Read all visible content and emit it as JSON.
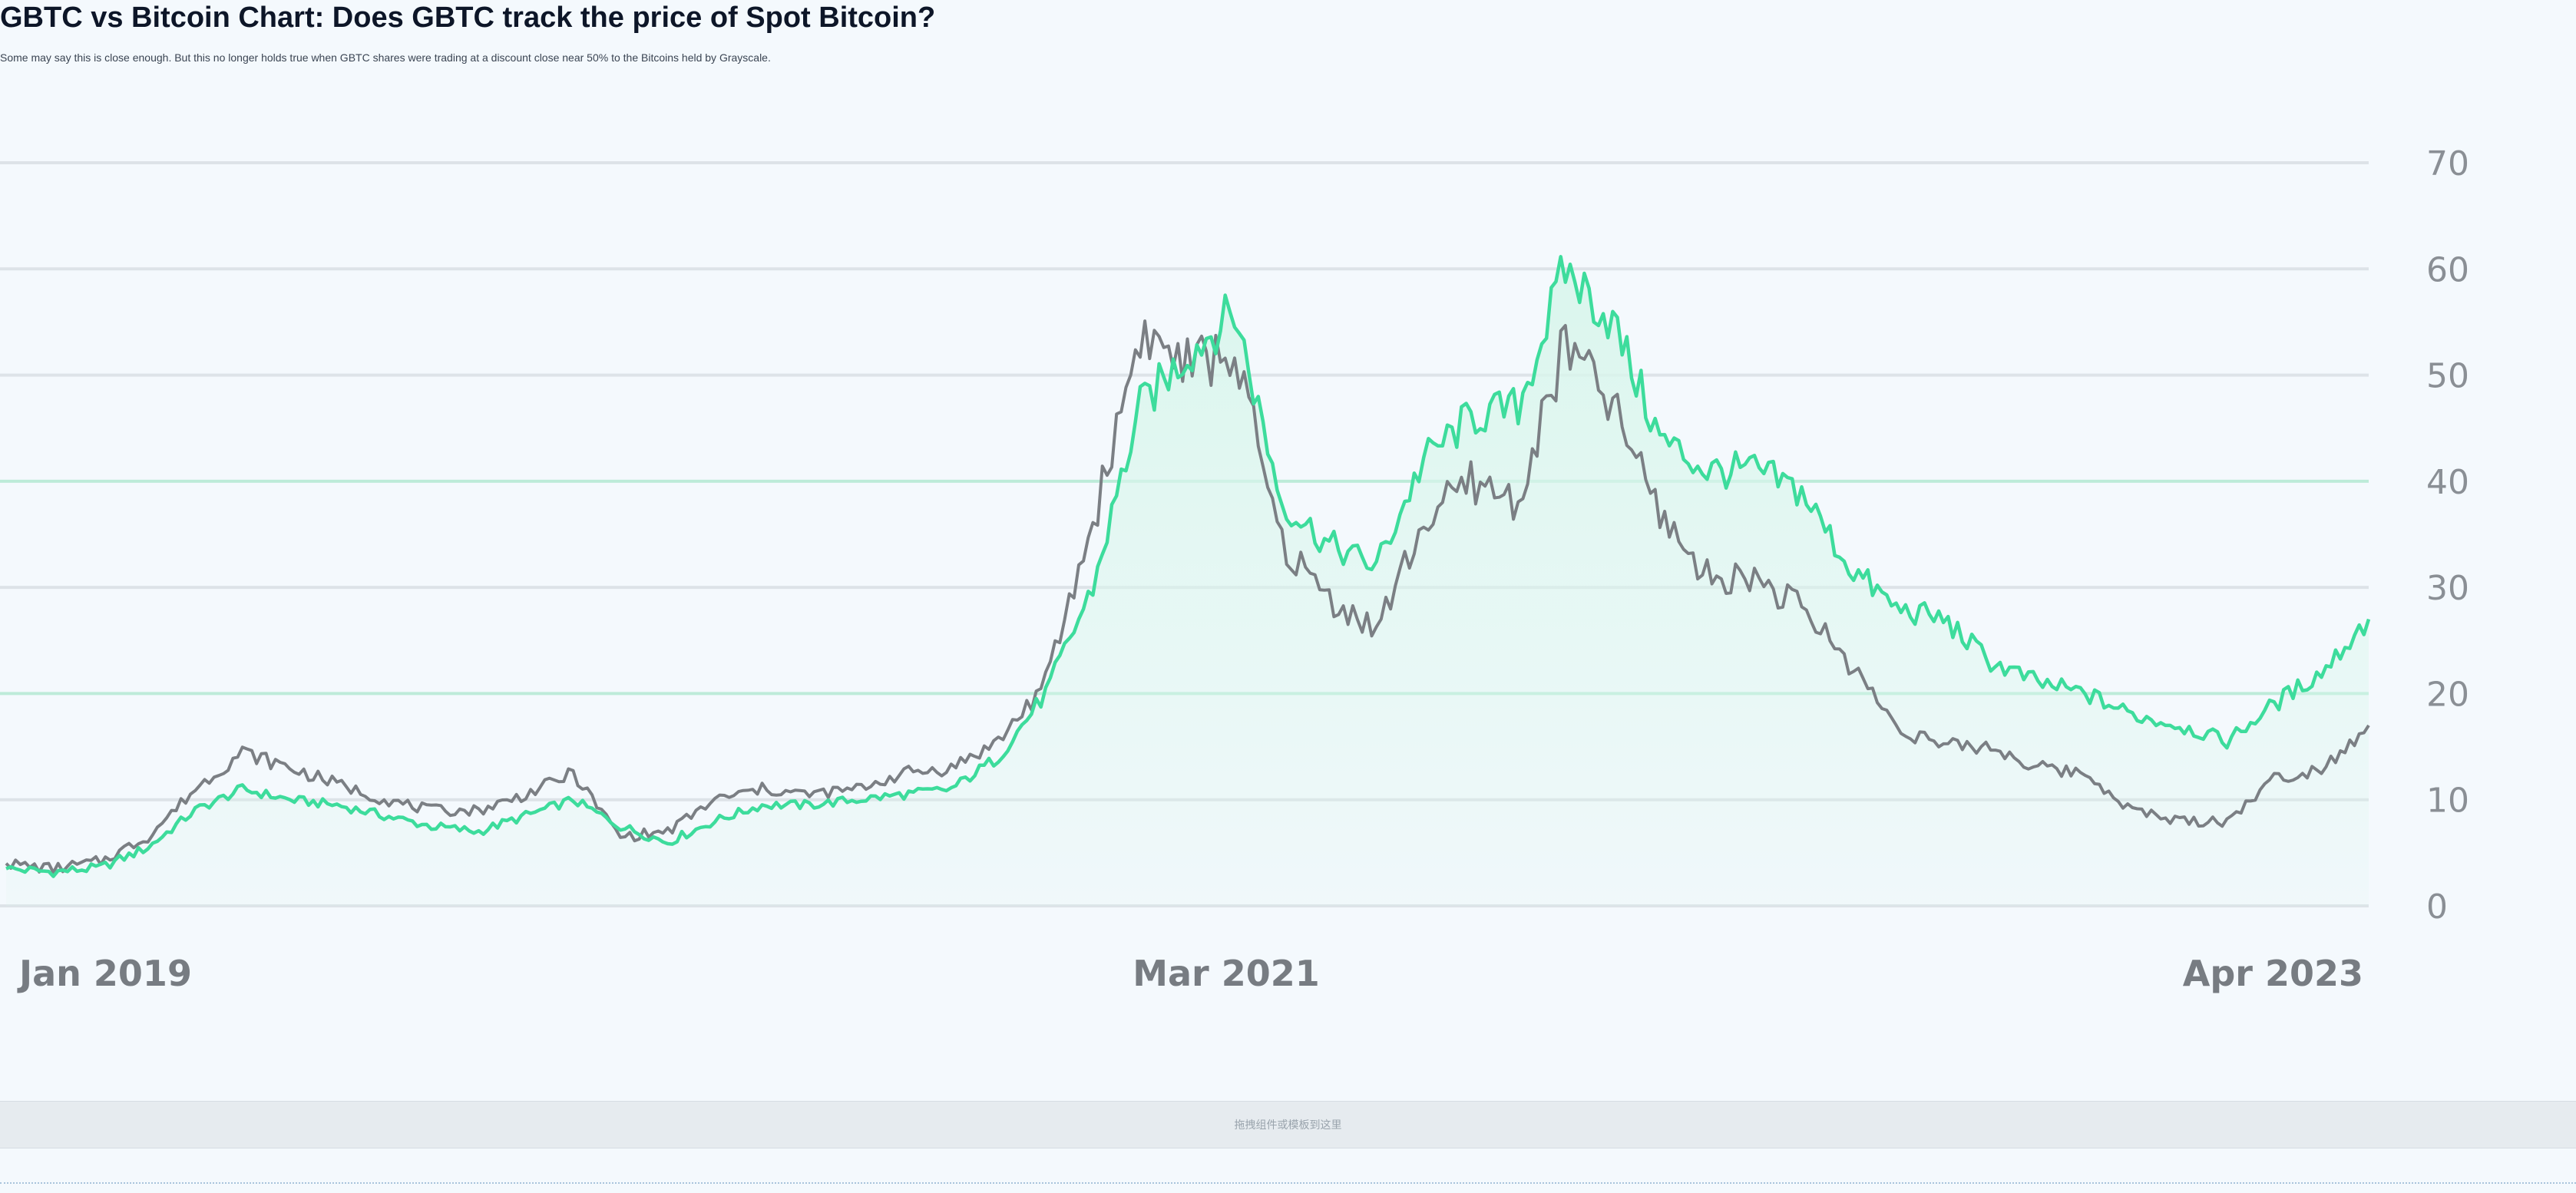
{
  "page": {
    "title": "GBTC vs Bitcoin Chart: Does GBTC track the price of Spot Bitcoin?",
    "subtitle": "Some may say this is close enough. But this no longer holds true when GBTC shares were trading at a discount close near 50% to the Bitcoins held by Grayscale.",
    "footer_hint": "拖拽组件或模板到这里"
  },
  "colors": {
    "series_primary": "#3ddc9c",
    "series_secondary": "#7b7f84",
    "area_fill": "#d9f6ec",
    "grid": "#dde3e8",
    "grid_highlight": "#bdebd9"
  },
  "chart_data": {
    "type": "line",
    "title": "",
    "xlabel": "",
    "ylabel": "",
    "ylim": [
      0,
      70
    ],
    "yticks": [
      0,
      10,
      20,
      30,
      40,
      50,
      60,
      70
    ],
    "grid": true,
    "y_axis_side": "right",
    "xtick_labels": [
      "Jan 2019",
      "Mar 2021",
      "Apr 2023"
    ],
    "x": [
      "2018-11",
      "2019-01",
      "2019-03",
      "2019-05",
      "2019-06",
      "2019-07",
      "2019-08",
      "2019-09",
      "2019-10",
      "2019-11",
      "2019-12",
      "2020-01",
      "2020-02",
      "2020-03",
      "2020-04",
      "2020-05",
      "2020-06",
      "2020-07",
      "2020-08",
      "2020-09",
      "2020-10",
      "2020-11",
      "2020-12",
      "2021-01",
      "2021-02",
      "2021-03",
      "2021-04",
      "2021-05",
      "2021-06",
      "2021-07",
      "2021-08",
      "2021-09",
      "2021-10",
      "2021-11",
      "2021-12",
      "2022-01",
      "2022-02",
      "2022-03",
      "2022-04",
      "2022-05",
      "2022-06",
      "2022-07",
      "2022-08",
      "2022-09",
      "2022-10",
      "2022-11",
      "2022-12",
      "2023-01",
      "2023-02",
      "2023-03",
      "2023-04"
    ],
    "series": [
      {
        "values": [
          3.5,
          3.2,
          3.6,
          5.5,
          9,
          11,
          10,
          9.5,
          8.5,
          7.5,
          7,
          8.5,
          10,
          7.5,
          6,
          8,
          9.5,
          9.5,
          10,
          10.5,
          11,
          14,
          20,
          30,
          47,
          52,
          56,
          38,
          34,
          32,
          42,
          46,
          47,
          60,
          55,
          44,
          41,
          41,
          39,
          32,
          28,
          27,
          23,
          21,
          20,
          18,
          17,
          15.5,
          19,
          22,
          27
        ]
      },
      {
        "values": [
          4,
          3.5,
          4.2,
          6.5,
          11,
          14.5,
          13,
          11.5,
          10,
          9,
          9,
          10.5,
          12.5,
          6.5,
          7,
          10,
          11,
          10.5,
          11,
          12.5,
          13,
          15.5,
          21,
          36,
          54,
          51,
          52,
          34,
          29,
          26,
          36,
          40,
          38,
          53,
          47,
          37,
          31,
          31,
          28,
          23,
          17,
          15,
          15,
          13,
          12.5,
          9,
          8,
          8,
          12,
          13,
          17
        ]
      }
    ]
  }
}
